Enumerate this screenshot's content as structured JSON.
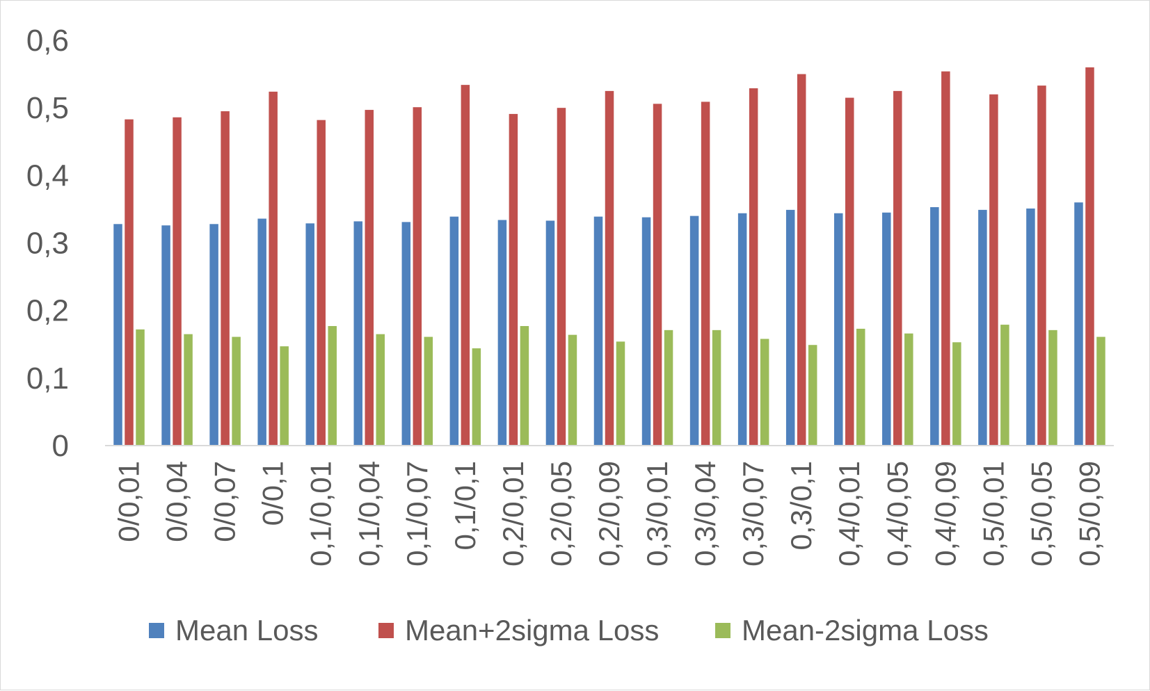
{
  "chart_data": {
    "type": "bar",
    "title": "",
    "xlabel": "",
    "ylabel": "",
    "ylim": [
      0,
      0.6
    ],
    "yticks": [
      {
        "value": 0,
        "label": "0"
      },
      {
        "value": 0.1,
        "label": "0,1"
      },
      {
        "value": 0.2,
        "label": "0,2"
      },
      {
        "value": 0.3,
        "label": "0,3"
      },
      {
        "value": 0.4,
        "label": "0,4"
      },
      {
        "value": 0.5,
        "label": "0,5"
      },
      {
        "value": 0.6,
        "label": "0,6"
      }
    ],
    "grid": false,
    "legend_position": "bottom",
    "categories": [
      "0/0,01",
      "0/0,04",
      "0/0,07",
      "0/0,1",
      "0,1/0,01",
      "0,1/0,04",
      "0,1/0,07",
      "0,1/0,1",
      "0,2/0,01",
      "0,2/0,05",
      "0,2/0,09",
      "0,3/0,01",
      "0,3/0,04",
      "0,3/0,07",
      "0,3/0,1",
      "0,4/0,01",
      "0,4/0,05",
      "0,4/0,09",
      "0,5/0,01",
      "0,5/0,05",
      "0,5/0,09"
    ],
    "series": [
      {
        "name": "Mean Loss",
        "color": "#4f81bd",
        "values": [
          0.328,
          0.326,
          0.328,
          0.336,
          0.329,
          0.332,
          0.331,
          0.339,
          0.334,
          0.333,
          0.339,
          0.338,
          0.34,
          0.344,
          0.349,
          0.344,
          0.345,
          0.353,
          0.349,
          0.351,
          0.36
        ]
      },
      {
        "name": "Mean+2sigma Loss",
        "color": "#c0504d",
        "values": [
          0.483,
          0.486,
          0.495,
          0.524,
          0.482,
          0.497,
          0.501,
          0.534,
          0.491,
          0.5,
          0.525,
          0.506,
          0.509,
          0.529,
          0.55,
          0.515,
          0.525,
          0.554,
          0.52,
          0.533,
          0.56
        ]
      },
      {
        "name": "Mean-2sigma Loss",
        "color": "#9bbb59",
        "values": [
          0.172,
          0.165,
          0.161,
          0.147,
          0.177,
          0.165,
          0.161,
          0.144,
          0.177,
          0.164,
          0.154,
          0.171,
          0.171,
          0.158,
          0.149,
          0.173,
          0.166,
          0.153,
          0.179,
          0.171,
          0.161
        ]
      }
    ]
  }
}
